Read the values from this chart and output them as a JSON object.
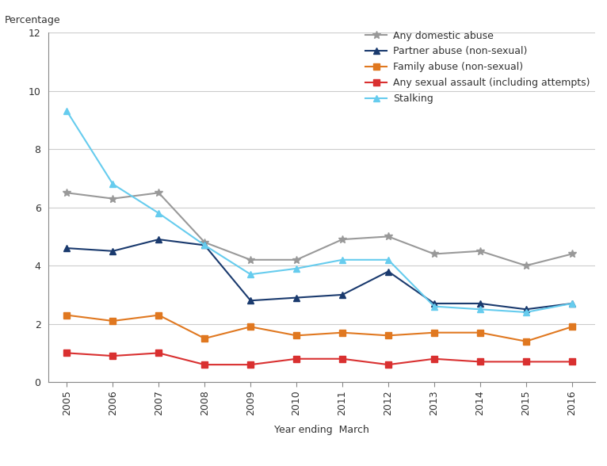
{
  "years": [
    2005,
    2006,
    2007,
    2008,
    2009,
    2010,
    2011,
    2012,
    2013,
    2014,
    2015,
    2016
  ],
  "any_domestic_abuse": [
    6.5,
    6.3,
    6.5,
    4.8,
    4.2,
    4.2,
    4.9,
    5.0,
    4.4,
    4.5,
    4.0,
    4.4
  ],
  "partner_abuse": [
    4.6,
    4.5,
    4.9,
    4.7,
    2.8,
    2.9,
    3.0,
    3.8,
    2.7,
    2.7,
    2.5,
    2.7
  ],
  "family_abuse": [
    2.3,
    2.1,
    2.3,
    1.5,
    1.9,
    1.6,
    1.7,
    1.6,
    1.7,
    1.7,
    1.4,
    1.9
  ],
  "sexual_assault": [
    1.0,
    0.9,
    1.0,
    0.6,
    0.6,
    0.8,
    0.8,
    0.6,
    0.8,
    0.7,
    0.7,
    0.7
  ],
  "stalking": [
    9.3,
    6.8,
    5.8,
    4.7,
    3.7,
    3.9,
    4.2,
    4.2,
    2.6,
    2.5,
    2.4,
    2.7
  ],
  "series_labels": [
    "Any domestic abuse",
    "Partner abuse (non-sexual)",
    "Family abuse (non-sexual)",
    "Any sexual assault (including attempts)",
    "Stalking"
  ],
  "series_colors": [
    "#999999",
    "#1a3a6e",
    "#e07820",
    "#d93030",
    "#66ccee"
  ],
  "series_markers": [
    "*",
    "^",
    "s",
    "s",
    "^"
  ],
  "ylabel_text": "Percentage",
  "xlabel": "Year ending  March",
  "ylim": [
    0,
    12
  ],
  "yticks": [
    0,
    2,
    4,
    6,
    8,
    10,
    12
  ],
  "background_color": "#ffffff",
  "grid_color": "#cccccc",
  "spine_color": "#888888"
}
